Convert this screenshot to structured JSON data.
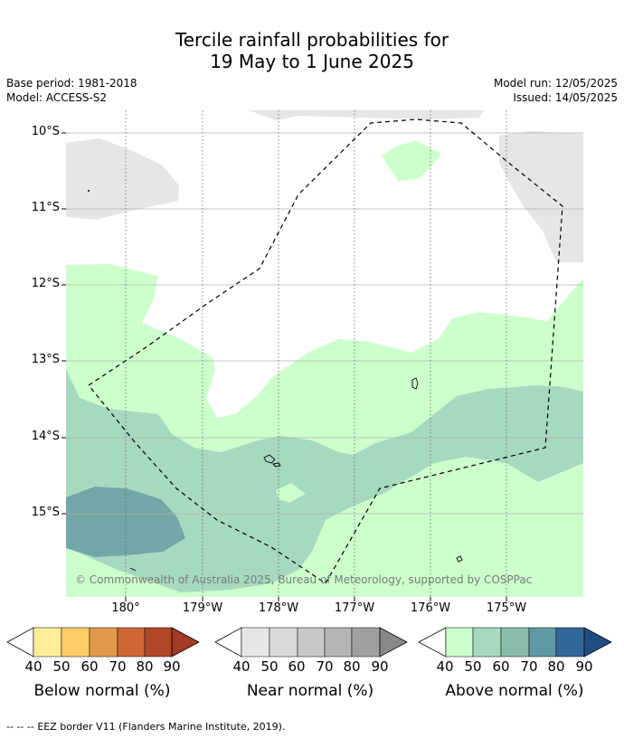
{
  "title": {
    "line1": "Tercile rainfall probabilities for",
    "line2": "19 May to 1 June 2025"
  },
  "meta": {
    "base_period": "Base period: 1981-2018",
    "model": "Model: ACCESS-S2",
    "model_run": "Model run: 12/05/2025",
    "issued": "Issued: 14/05/2025"
  },
  "map": {
    "lat_labels": [
      "10°S",
      "11°S",
      "12°S",
      "13°S",
      "14°S",
      "15°S"
    ],
    "lon_labels": [
      "180°",
      "179°W",
      "178°W",
      "177°W",
      "176°W",
      "175°W"
    ],
    "credit": "© Commonwealth of Australia 2025, Bureau of Meteorology, supported by COSPPac",
    "colors": {
      "near_light": "#e6e6e6",
      "above_40": "#ccffcc",
      "above_50": "#a6d9bf",
      "above_60": "#73a6a6",
      "eez_line": "#000000"
    }
  },
  "colorbars": [
    {
      "label": "Below normal (%)",
      "ticks": [
        "40",
        "50",
        "60",
        "70",
        "80",
        "90"
      ],
      "colors": [
        "#ffee99",
        "#ffcc66",
        "#e09a4a",
        "#cf6633",
        "#b0482a",
        "#a33a25"
      ]
    },
    {
      "label": "Near normal (%)",
      "ticks": [
        "40",
        "50",
        "60",
        "70",
        "80",
        "90"
      ],
      "colors": [
        "#e6e6e6",
        "#d9d9d9",
        "#c8c8c8",
        "#b5b5b5",
        "#a0a0a0",
        "#888888"
      ]
    },
    {
      "label": "Above normal (%)",
      "ticks": [
        "40",
        "50",
        "60",
        "70",
        "80",
        "90"
      ],
      "colors": [
        "#ccffcc",
        "#a6d9bf",
        "#88bbaa",
        "#5f99a6",
        "#336699",
        "#1f4f80"
      ]
    }
  ],
  "footer": {
    "legend_symbol": "--  --  --",
    "legend_text": "EEZ border V11 (Flanders Marine Institute, 2019)."
  }
}
